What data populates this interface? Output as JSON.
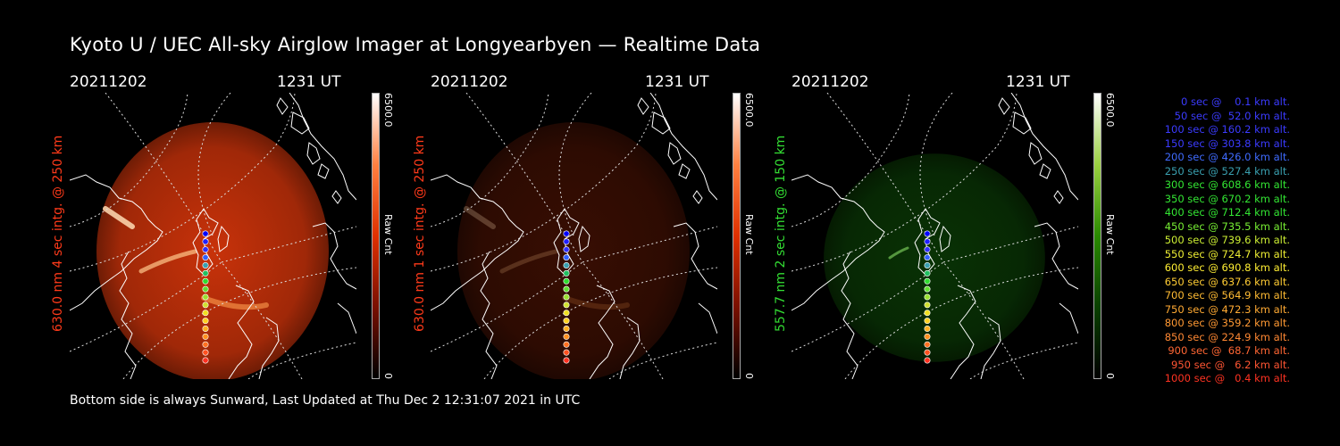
{
  "title": "Kyoto U / UEC All-sky Airglow Imager at Longyearbyen — Realtime Data",
  "footer": "Bottom side is always Sunward, Last Updated at Thu Dec  2 12:31:07 2021 in UTC",
  "panels": [
    {
      "date": "20211202",
      "time": "1231 UT",
      "ylabel": "630.0 nm 4 sec intg. @ 250 km",
      "ylabel_color": "#ff3a1a",
      "cb_max": "6500.0",
      "cb_unit": "Raw Cnt",
      "cb_min": "0",
      "tint": "red",
      "intensity": 1.0
    },
    {
      "date": "20211202",
      "time": "1231 UT",
      "ylabel": "630.0 nm 1 sec intg. @ 250 km",
      "ylabel_color": "#ff3a1a",
      "cb_max": "6500.0",
      "cb_unit": "Raw Cnt",
      "cb_min": "0",
      "tint": "red",
      "intensity": 0.28
    },
    {
      "date": "20211202",
      "time": "1231 UT",
      "ylabel": "557.7 nm 2 sec intg. @ 150 km",
      "ylabel_color": "#33dd33",
      "cb_max": "6500.0",
      "cb_unit": "Raw Cnt",
      "cb_min": "0",
      "tint": "green",
      "intensity": 0.45
    }
  ],
  "altitudes": [
    {
      "text": "0 sec @    0.1 km alt.",
      "color": "#3b3bff"
    },
    {
      "text": "50 sec @  52.0 km alt.",
      "color": "#3b3bff"
    },
    {
      "text": "100 sec @ 160.2 km alt.",
      "color": "#3b3bff"
    },
    {
      "text": "150 sec @ 303.8 km alt.",
      "color": "#3b3bff"
    },
    {
      "text": "200 sec @ 426.0 km alt.",
      "color": "#3f6bff"
    },
    {
      "text": "250 sec @ 527.4 km alt.",
      "color": "#3aa0b0"
    },
    {
      "text": "300 sec @ 608.6 km alt.",
      "color": "#33e633"
    },
    {
      "text": "350 sec @ 670.2 km alt.",
      "color": "#33e633"
    },
    {
      "text": "400 sec @ 712.4 km alt.",
      "color": "#33e633"
    },
    {
      "text": "450 sec @ 735.5 km alt.",
      "color": "#77ee33"
    },
    {
      "text": "500 sec @ 739.6 km alt.",
      "color": "#ccee33"
    },
    {
      "text": "550 sec @ 724.7 km alt.",
      "color": "#eeee33"
    },
    {
      "text": "600 sec @ 690.8 km alt.",
      "color": "#ffee33"
    },
    {
      "text": "650 sec @ 637.6 km alt.",
      "color": "#ffcc33"
    },
    {
      "text": "700 sec @ 564.9 km alt.",
      "color": "#ffbb33"
    },
    {
      "text": "750 sec @ 472.3 km alt.",
      "color": "#ffaa33"
    },
    {
      "text": "800 sec @ 359.2 km alt.",
      "color": "#ff9933"
    },
    {
      "text": "850 sec @ 224.9 km alt.",
      "color": "#ff8833"
    },
    {
      "text": "900 sec @  68.7 km alt.",
      "color": "#ff6633"
    },
    {
      "text": "950 sec @   6.2 km alt.",
      "color": "#ff5533"
    },
    {
      "text": "1000 sec @   0.4 km alt.",
      "color": "#ff3322"
    }
  ]
}
